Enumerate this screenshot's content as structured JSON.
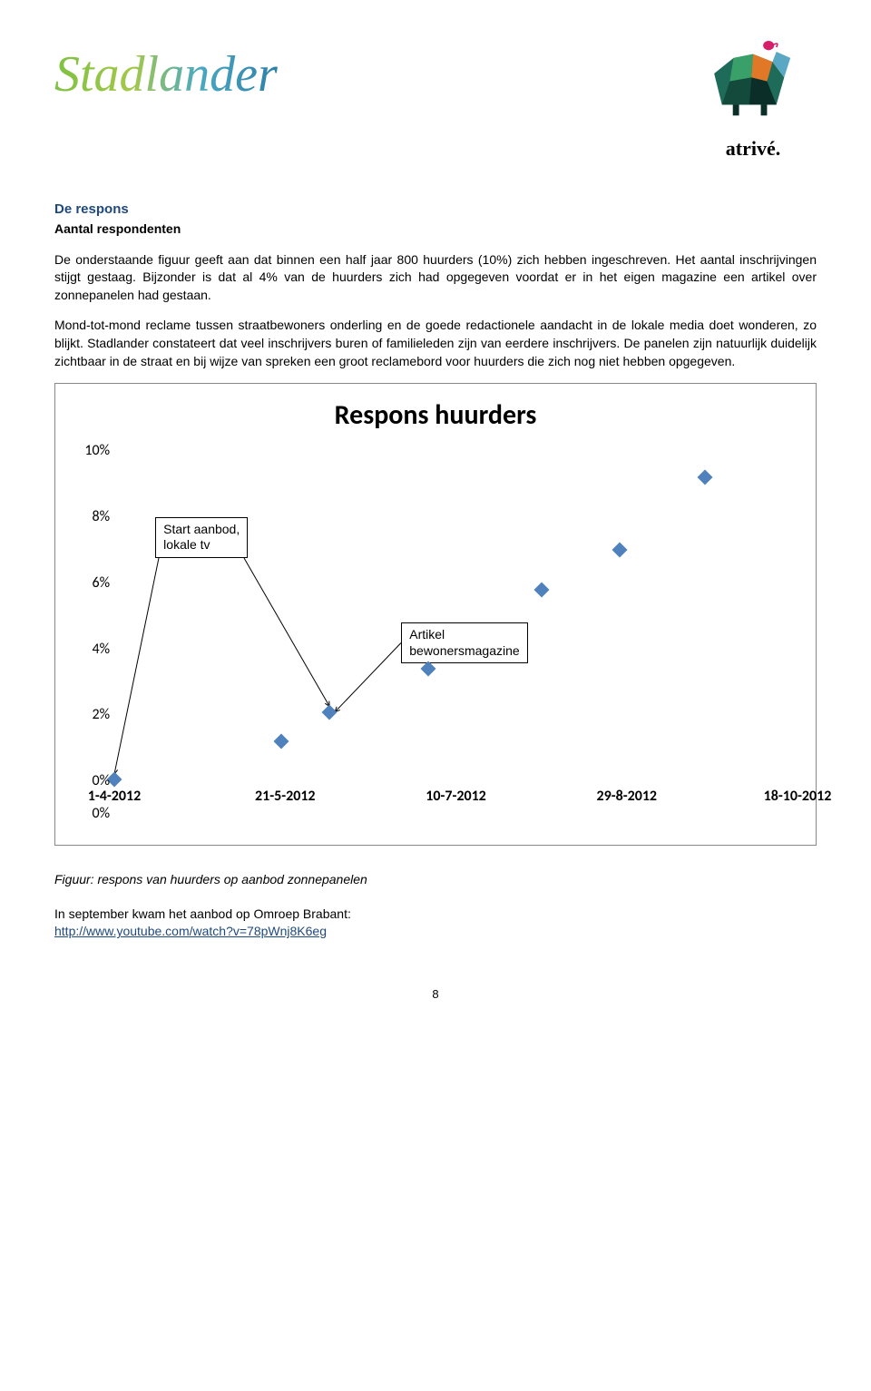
{
  "logos": {
    "left_name": "Stadlander",
    "right_name": "atrivé."
  },
  "heading": "De respons",
  "sub_heading": "Aantal respondenten",
  "paragraphs": {
    "p1": "De onderstaande figuur geeft aan dat binnen een half jaar 800 huurders (10%) zich hebben ingeschreven. Het aantal inschrijvingen stijgt gestaag. Bijzonder is dat al 4% van de huurders zich had opgegeven voordat er in het eigen magazine een artikel over zonnepanelen had gestaan.",
    "p2": "Mond-tot-mond reclame tussen straatbewoners onderling en de goede redactionele aandacht in de lokale media doet wonderen, zo blijkt. Stadlander constateert dat veel inschrijvers buren of familieleden zijn van eerdere inschrijvers. De panelen zijn natuurlijk duidelijk zichtbaar in de straat en bij wijze van spreken een groot reclamebord voor huurders die zich nog niet hebben opgegeven."
  },
  "chart": {
    "title": "Respons huurders",
    "type": "scatter",
    "ylabel_format": "percent",
    "ylim": [
      0,
      10
    ],
    "ytick_step": 2,
    "yticks": [
      "0%",
      "2%",
      "4%",
      "6%",
      "8%",
      "10%"
    ],
    "xticks": [
      "1-4-2012",
      "21-5-2012",
      "10-7-2012",
      "29-8-2012",
      "18-10-2012"
    ],
    "x_range_days": 200,
    "marker_color": "#4f81bd",
    "background_color": "#ffffff",
    "border_color": "#888888",
    "title_fontsize": 30,
    "tick_fontsize": 16,
    "points": [
      {
        "x_days": 0,
        "y": 0.05
      },
      {
        "x_days": 49,
        "y": 1.2
      },
      {
        "x_days": 63,
        "y": 2.1
      },
      {
        "x_days": 92,
        "y": 3.4
      },
      {
        "x_days": 125,
        "y": 5.8
      },
      {
        "x_days": 148,
        "y": 7.0
      },
      {
        "x_days": 173,
        "y": 9.2
      }
    ],
    "callouts": {
      "start": {
        "line1": "Start aanbod,",
        "line2": "lokale tv"
      },
      "artikel": {
        "line1": "Artikel",
        "line2": "bewonersmagazine"
      }
    }
  },
  "caption": "Figuur: respons van huurders op aanbod zonnepanelen",
  "footer": {
    "line": "In september kwam het aanbod op Omroep Brabant:",
    "link_text": "http://www.youtube.com/watch?v=78pWnj8K6eg"
  },
  "page_number": "8"
}
